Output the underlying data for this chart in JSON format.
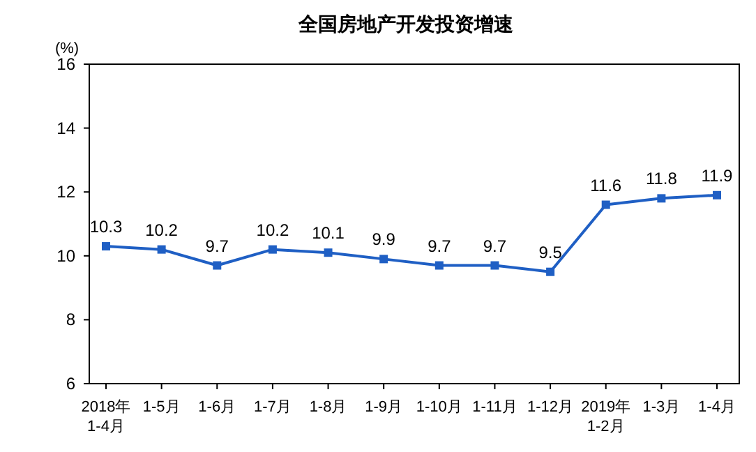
{
  "chart_data": {
    "type": "line",
    "title": "全国房地产开发投资增速",
    "ylabel": "(%)",
    "categories": [
      "2018年\n1-4月",
      "1-5月",
      "1-6月",
      "1-7月",
      "1-8月",
      "1-9月",
      "1-10月",
      "1-11月",
      "1-12月",
      "2019年\n1-2月",
      "1-3月",
      "1-4月"
    ],
    "series": [
      {
        "color": "#1f5fc4",
        "values": [
          10.3,
          10.2,
          9.7,
          10.2,
          10.1,
          9.9,
          9.7,
          9.7,
          9.5,
          11.6,
          11.8,
          11.9
        ]
      }
    ],
    "ylim": [
      6,
      16
    ],
    "yticks": [
      6,
      8,
      10,
      12,
      14,
      16
    ],
    "grid": false,
    "marker": "square",
    "line_style": "solid",
    "data_labels": true
  }
}
